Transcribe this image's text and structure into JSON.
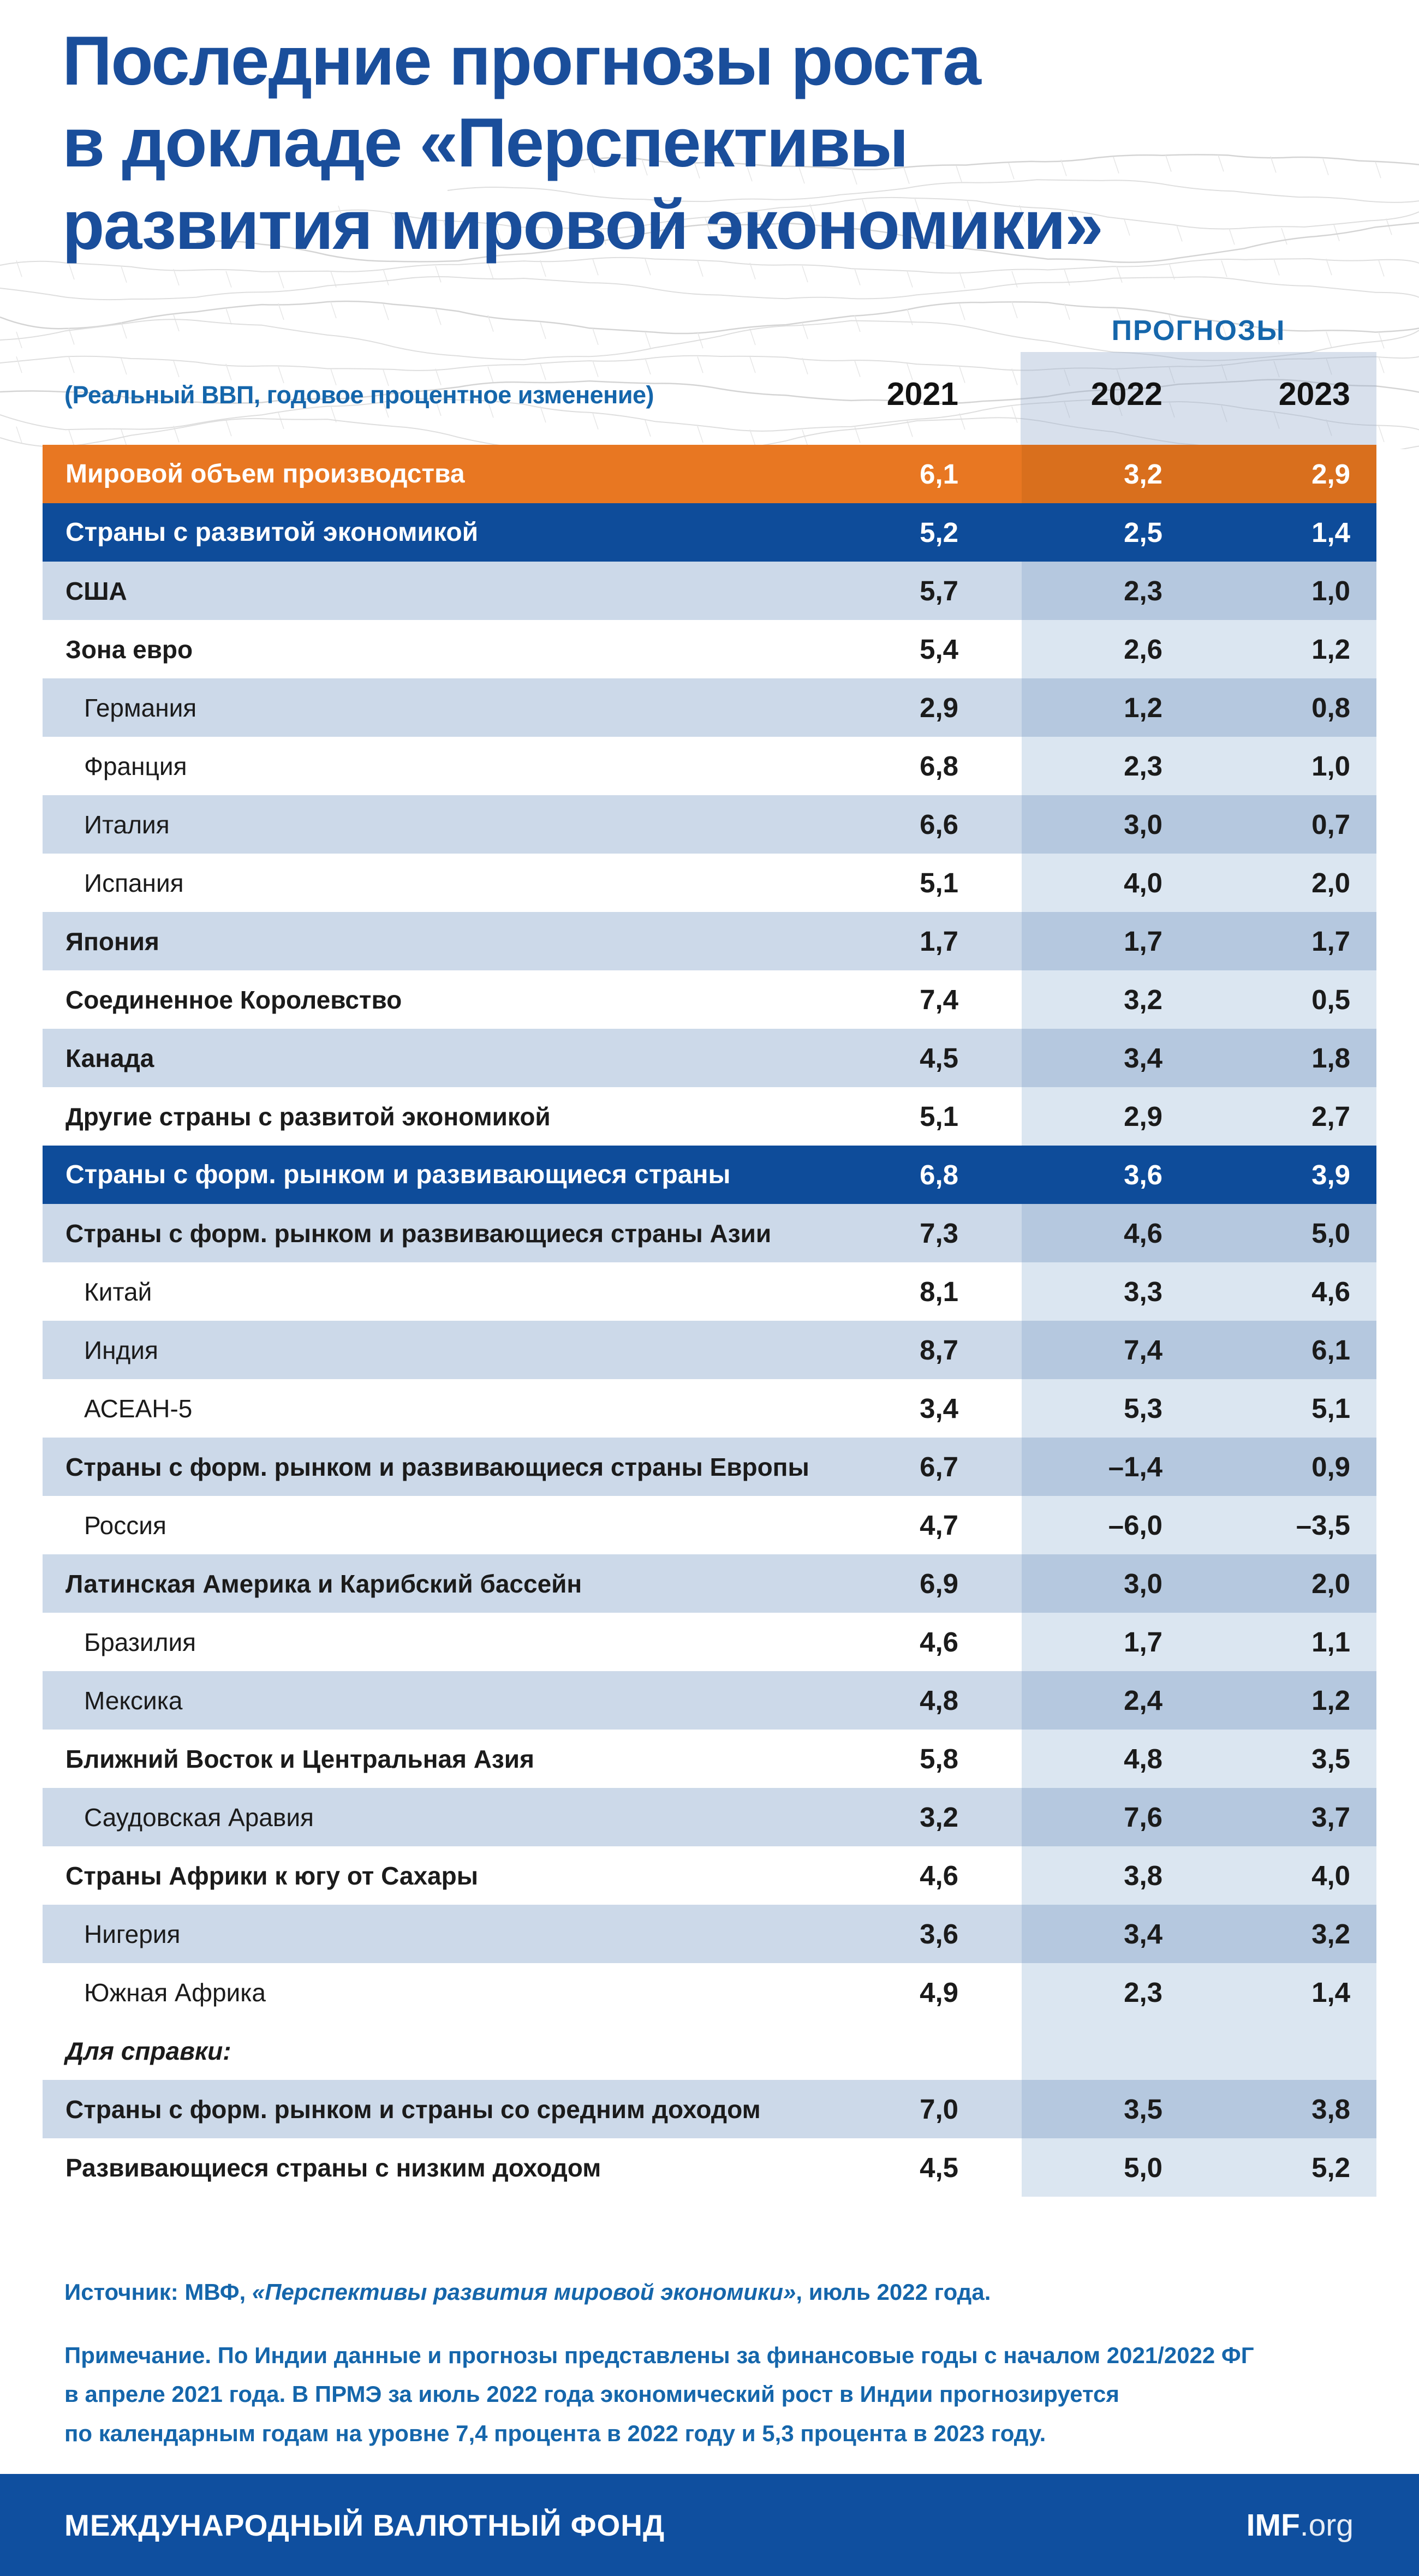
{
  "title_lines": [
    "Последние прогнозы роста",
    "в докладе «Перспективы",
    "развития мировой экономики»"
  ],
  "subtitle": "(Реальный ВВП, годовое процентное изменение)",
  "forecast_label": "ПРОГНОЗЫ",
  "years": [
    "2021",
    "2022",
    "2023"
  ],
  "chart_data": {
    "type": "table",
    "title": "Последние прогнозы роста в докладе «Перспективы развития мировой экономики»",
    "subtitle": "(Реальный ВВП, годовое процентное изменение)",
    "columns": [
      "2021",
      "2022",
      "2023"
    ],
    "forecast_columns": [
      "2022",
      "2023"
    ],
    "rows": [
      {
        "label": "Мировой объем производства",
        "values": [
          6.1,
          3.2,
          2.9
        ],
        "style": "orange",
        "indent": false
      },
      {
        "label": "Страны с развитой экономикой",
        "values": [
          5.2,
          2.5,
          1.4
        ],
        "style": "dark",
        "indent": false
      },
      {
        "label": "США",
        "values": [
          5.7,
          2.3,
          1.0
        ],
        "style": "light",
        "indent": false
      },
      {
        "label": "Зона евро",
        "values": [
          5.4,
          2.6,
          1.2
        ],
        "style": "white",
        "indent": false
      },
      {
        "label": "Германия",
        "values": [
          2.9,
          1.2,
          0.8
        ],
        "style": "light",
        "indent": true
      },
      {
        "label": "Франция",
        "values": [
          6.8,
          2.3,
          1.0
        ],
        "style": "white",
        "indent": true
      },
      {
        "label": "Италия",
        "values": [
          6.6,
          3.0,
          0.7
        ],
        "style": "light",
        "indent": true
      },
      {
        "label": "Испания",
        "values": [
          5.1,
          4.0,
          2.0
        ],
        "style": "white",
        "indent": true
      },
      {
        "label": "Япония",
        "values": [
          1.7,
          1.7,
          1.7
        ],
        "style": "light",
        "indent": false
      },
      {
        "label": "Соединенное Королевство",
        "values": [
          7.4,
          3.2,
          0.5
        ],
        "style": "white",
        "indent": false
      },
      {
        "label": "Канада",
        "values": [
          4.5,
          3.4,
          1.8
        ],
        "style": "light",
        "indent": false
      },
      {
        "label": "Другие страны с развитой экономикой",
        "values": [
          5.1,
          2.9,
          2.7
        ],
        "style": "white",
        "indent": false
      },
      {
        "label": "Страны с форм. рынком и развивающиеся страны",
        "values": [
          6.8,
          3.6,
          3.9
        ],
        "style": "dark",
        "indent": false
      },
      {
        "label": "Страны с форм. рынком и развивающиеся страны Азии",
        "values": [
          7.3,
          4.6,
          5.0
        ],
        "style": "light",
        "indent": false
      },
      {
        "label": "Китай",
        "values": [
          8.1,
          3.3,
          4.6
        ],
        "style": "white",
        "indent": true
      },
      {
        "label": "Индия",
        "values": [
          8.7,
          7.4,
          6.1
        ],
        "style": "light",
        "indent": true
      },
      {
        "label": "АСЕАН-5",
        "values": [
          3.4,
          5.3,
          5.1
        ],
        "style": "white",
        "indent": true
      },
      {
        "label": "Страны с форм. рынком и развивающиеся страны Европы",
        "values": [
          6.7,
          -1.4,
          0.9
        ],
        "style": "light",
        "indent": false
      },
      {
        "label": "Россия",
        "values": [
          4.7,
          -6.0,
          -3.5
        ],
        "style": "white",
        "indent": true
      },
      {
        "label": "Латинская Америка и Карибский бассейн",
        "values": [
          6.9,
          3.0,
          2.0
        ],
        "style": "light",
        "indent": false
      },
      {
        "label": "Бразилия",
        "values": [
          4.6,
          1.7,
          1.1
        ],
        "style": "white",
        "indent": true
      },
      {
        "label": "Мексика",
        "values": [
          4.8,
          2.4,
          1.2
        ],
        "style": "light",
        "indent": true
      },
      {
        "label": "Ближний Восток и Центральная Азия",
        "values": [
          5.8,
          4.8,
          3.5
        ],
        "style": "white",
        "indent": false
      },
      {
        "label": "Саудовская Аравия",
        "values": [
          3.2,
          7.6,
          3.7
        ],
        "style": "light",
        "indent": true
      },
      {
        "label": "Страны Африки к югу от Сахары",
        "values": [
          4.6,
          3.8,
          4.0
        ],
        "style": "white",
        "indent": false
      },
      {
        "label": "Нигерия",
        "values": [
          3.6,
          3.4,
          3.2
        ],
        "style": "light",
        "indent": true
      },
      {
        "label": "Южная Африка",
        "values": [
          4.9,
          2.3,
          1.4
        ],
        "style": "white",
        "indent": true
      },
      {
        "label": "Для справки:",
        "values": null,
        "style": "white",
        "indent": false,
        "italic": true
      },
      {
        "label": "Страны с форм. рынком и страны со средним доходом",
        "values": [
          7.0,
          3.5,
          3.8
        ],
        "style": "light",
        "indent": false
      },
      {
        "label": "Развивающиеся страны с низким доходом",
        "values": [
          4.5,
          5.0,
          5.2
        ],
        "style": "white",
        "indent": false
      }
    ]
  },
  "source": {
    "prefix": "Источник: МВФ, ",
    "italic": "«Перспективы развития мировой экономики»",
    "suffix": ", июль 2022 года."
  },
  "note_lines": [
    "Примечание. По Индии данные и прогнозы представлены за финансовые годы с началом 2021/2022 ФГ",
    "в апреле 2021 года. В ПРМЭ за июль 2022 года экономический рост в Индии  прогнозируется",
    "по календарным годам на уровне 7,4 процента в 2022 году и 5,3 процента в 2023 году."
  ],
  "footer": {
    "org": "МЕЖДУНАРОДНЫЙ ВАЛЮТНЫЙ ФОНД",
    "site_bold": "IMF",
    "site_rest": ".org"
  },
  "colors": {
    "title_blue": "#1A4E9B",
    "accent_blue": "#1566AB",
    "orange": "#E87722",
    "orange_band": "#D96F1D",
    "dark_blue": "#0E4C9A",
    "light_row": "#CCD9E9",
    "light_band": "#B5C8DF",
    "white_band": "#DBE6F1",
    "footer_blue": "#0F4F9F"
  }
}
